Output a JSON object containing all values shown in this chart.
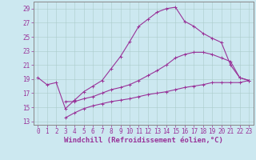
{
  "background_color": "#cce8f0",
  "grid_color": "#aacccc",
  "line_color": "#993399",
  "xlabel": "Windchill (Refroidissement éolien,°C)",
  "xlabel_fontsize": 6.5,
  "tick_fontsize": 5.5,
  "xlim": [
    -0.5,
    23.5
  ],
  "ylim": [
    12.5,
    30.0
  ],
  "yticks": [
    13,
    15,
    17,
    19,
    21,
    23,
    25,
    27,
    29
  ],
  "xticks": [
    0,
    1,
    2,
    3,
    4,
    5,
    6,
    7,
    8,
    9,
    10,
    11,
    12,
    13,
    14,
    15,
    16,
    17,
    18,
    19,
    20,
    21,
    22,
    23
  ],
  "line1_x": [
    0,
    1,
    2,
    3,
    4,
    5,
    6,
    7,
    8,
    9,
    10,
    11,
    12,
    13,
    14,
    15,
    16,
    17,
    18,
    19,
    20,
    21,
    22,
    23
  ],
  "line1_y": [
    19.2,
    18.2,
    18.5,
    14.8,
    16.0,
    17.2,
    18.0,
    18.8,
    20.5,
    22.2,
    24.3,
    26.5,
    27.5,
    28.5,
    29.0,
    29.2,
    27.2,
    26.5,
    25.5,
    24.8,
    24.2,
    21.0,
    19.2,
    18.8
  ],
  "line2_x": [
    3,
    4,
    5,
    6,
    7,
    8,
    9,
    10,
    11,
    12,
    13,
    14,
    15,
    16,
    17,
    18,
    19,
    20,
    21,
    22,
    23
  ],
  "line2_y": [
    15.8,
    15.8,
    16.2,
    16.5,
    17.0,
    17.5,
    17.8,
    18.2,
    18.8,
    19.5,
    20.2,
    21.0,
    22.0,
    22.5,
    22.8,
    22.8,
    22.5,
    22.0,
    21.5,
    19.2,
    18.8
  ],
  "line3_x": [
    3,
    4,
    5,
    6,
    7,
    8,
    9,
    10,
    11,
    12,
    13,
    14,
    15,
    16,
    17,
    18,
    19,
    20,
    21,
    22,
    23
  ],
  "line3_y": [
    13.5,
    14.2,
    14.8,
    15.2,
    15.5,
    15.8,
    16.0,
    16.2,
    16.5,
    16.8,
    17.0,
    17.2,
    17.5,
    17.8,
    18.0,
    18.2,
    18.5,
    18.5,
    18.5,
    18.5,
    18.8
  ]
}
